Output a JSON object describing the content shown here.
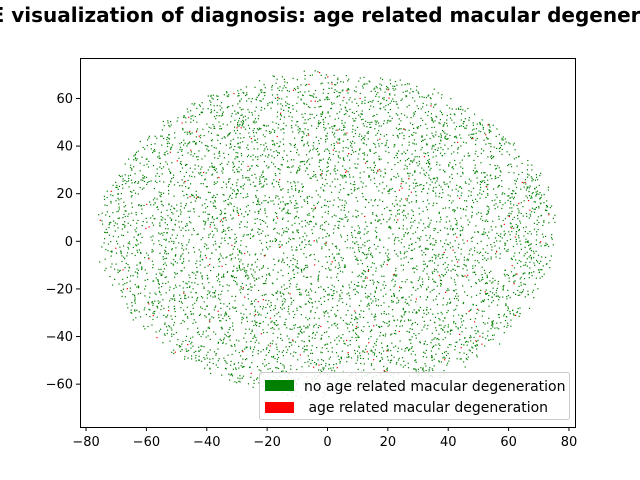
{
  "chart_data": {
    "type": "scatter",
    "title": "t-SNE visualization of diagnosis: age related macular degeneration",
    "xlabel": "",
    "ylabel": "",
    "xlim": [
      -82,
      82
    ],
    "ylim": [
      -78,
      77
    ],
    "x_ticks": [
      "−80",
      "−60",
      "−40",
      "−20",
      "0",
      "20",
      "40",
      "60",
      "80"
    ],
    "x_tick_values": [
      -80,
      -60,
      -40,
      -20,
      0,
      20,
      40,
      60,
      80
    ],
    "y_ticks": [
      "−60",
      "−40",
      "−20",
      "0",
      "20",
      "40",
      "60"
    ],
    "y_tick_values": [
      -60,
      -40,
      -20,
      0,
      20,
      40,
      60
    ],
    "grid": false,
    "legend_position": "lower-right",
    "point_cloud": {
      "shape": "ellipse",
      "center": [
        0,
        3
      ],
      "x_extent": [
        -75,
        75
      ],
      "y_extent": [
        -65,
        70
      ],
      "approx_points": 6000,
      "positive_fraction": 0.025
    },
    "series": [
      {
        "name": "no age related macular degeneration",
        "color": "#008000"
      },
      {
        "name": " age related macular degeneration",
        "color": "#ff0000"
      }
    ]
  }
}
